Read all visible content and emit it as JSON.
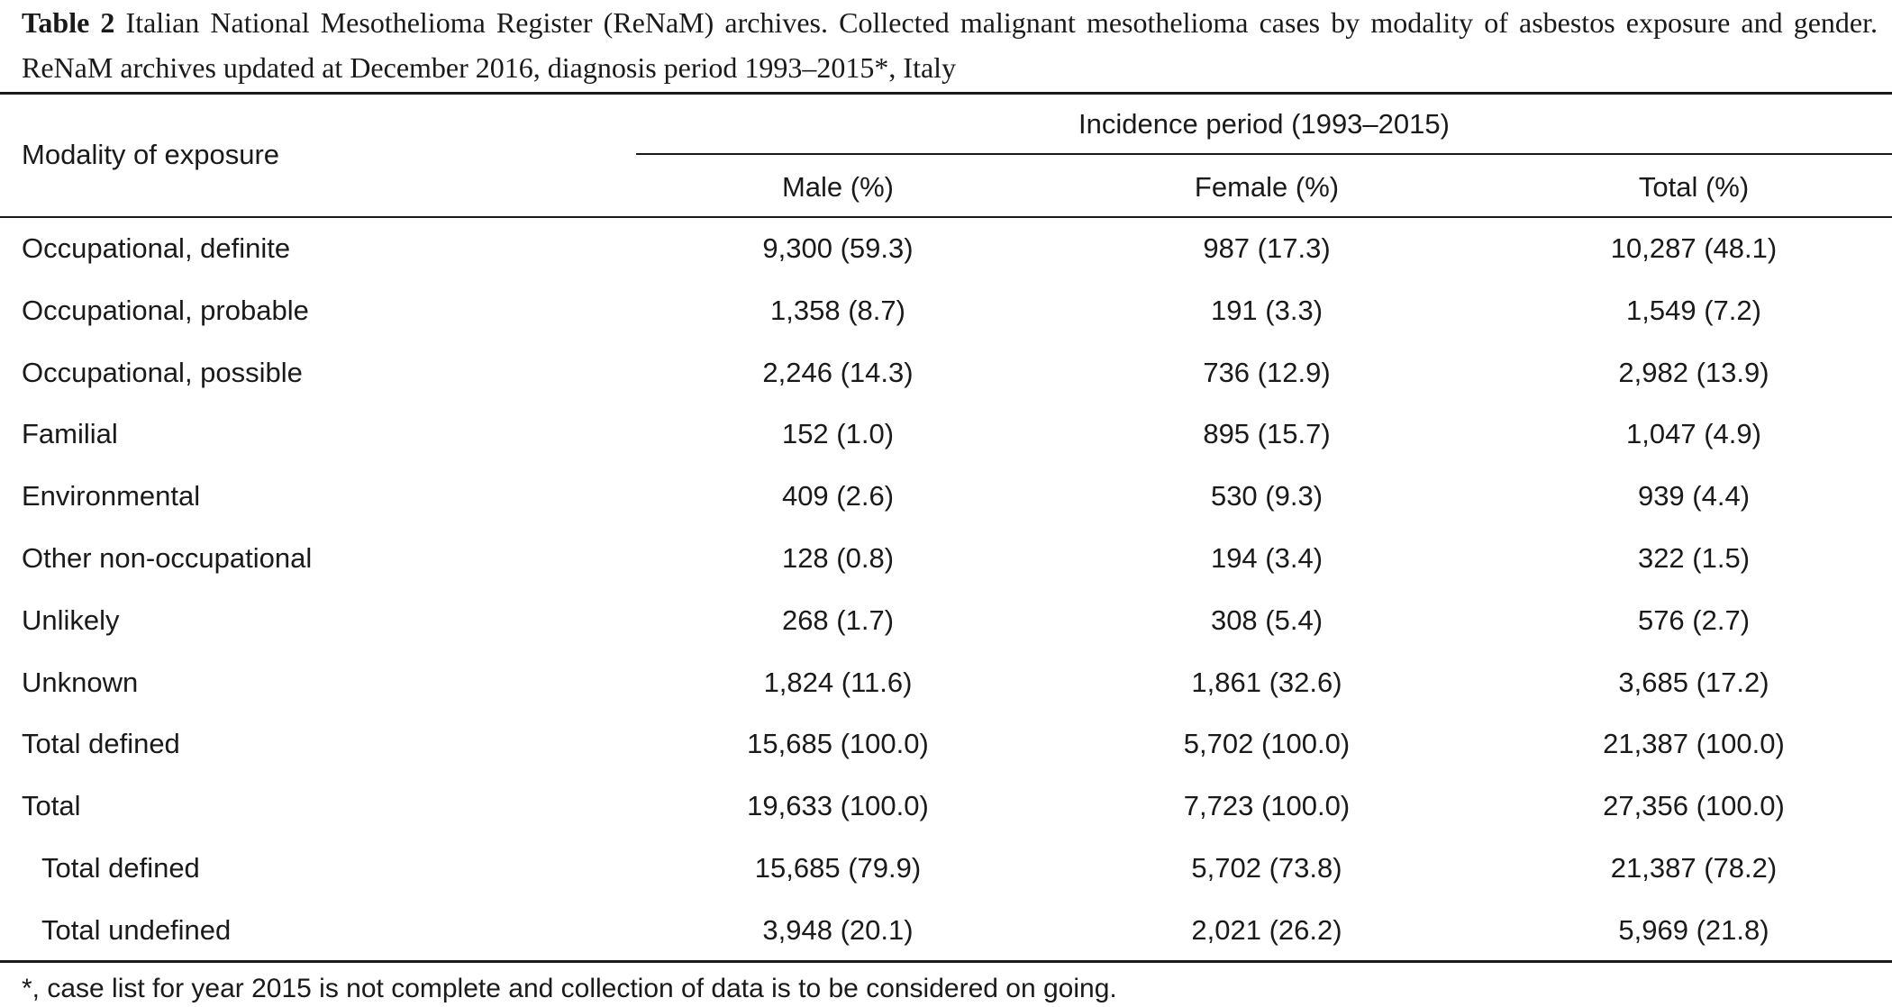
{
  "caption": {
    "label": "Table 2",
    "text": "Italian National Mesothelioma Register (ReNaM) archives. Collected malignant mesothelioma cases by modality of asbestos exposure and gender. ReNaM archives updated at December 2016, diagnosis period 1993–2015*, Italy"
  },
  "table": {
    "header": {
      "row_label": "Modality of exposure",
      "span_label": "Incidence period (1993–2015)",
      "columns": [
        "Male (%)",
        "Female (%)",
        "Total (%)"
      ]
    },
    "rows": [
      {
        "label": "Occupational, definite",
        "male": "9,300 (59.3)",
        "female": "987 (17.3)",
        "total": "10,287 (48.1)"
      },
      {
        "label": "Occupational, probable",
        "male": "1,358 (8.7)",
        "female": "191 (3.3)",
        "total": "1,549 (7.2)"
      },
      {
        "label": "Occupational, possible",
        "male": "2,246 (14.3)",
        "female": "736 (12.9)",
        "total": "2,982 (13.9)"
      },
      {
        "label": "Familial",
        "male": "152 (1.0)",
        "female": "895 (15.7)",
        "total": "1,047 (4.9)"
      },
      {
        "label": "Environmental",
        "male": "409 (2.6)",
        "female": "530 (9.3)",
        "total": "939 (4.4)"
      },
      {
        "label": "Other non-occupational",
        "male": "128 (0.8)",
        "female": "194 (3.4)",
        "total": "322 (1.5)"
      },
      {
        "label": "Unlikely",
        "male": "268 (1.7)",
        "female": "308 (5.4)",
        "total": "576 (2.7)"
      },
      {
        "label": "Unknown",
        "male": "1,824 (11.6)",
        "female": "1,861 (32.6)",
        "total": "3,685 (17.2)"
      },
      {
        "label": "Total defined",
        "male": "15,685 (100.0)",
        "female": "5,702 (100.0)",
        "total": "21,387 (100.0)"
      },
      {
        "label": "Total",
        "male": "19,633 (100.0)",
        "female": "7,723 (100.0)",
        "total": "27,356 (100.0)"
      },
      {
        "label": "Total defined",
        "male": "15,685 (79.9)",
        "female": "5,702 (73.8)",
        "total": "21,387 (78.2)",
        "indent": true
      },
      {
        "label": "Total undefined",
        "male": "3,948 (20.1)",
        "female": "2,021 (26.2)",
        "total": "5,969 (21.8)",
        "indent": true
      }
    ]
  },
  "footnote": "*, case list for year 2015 is not complete and collection of data is to be considered on going."
}
